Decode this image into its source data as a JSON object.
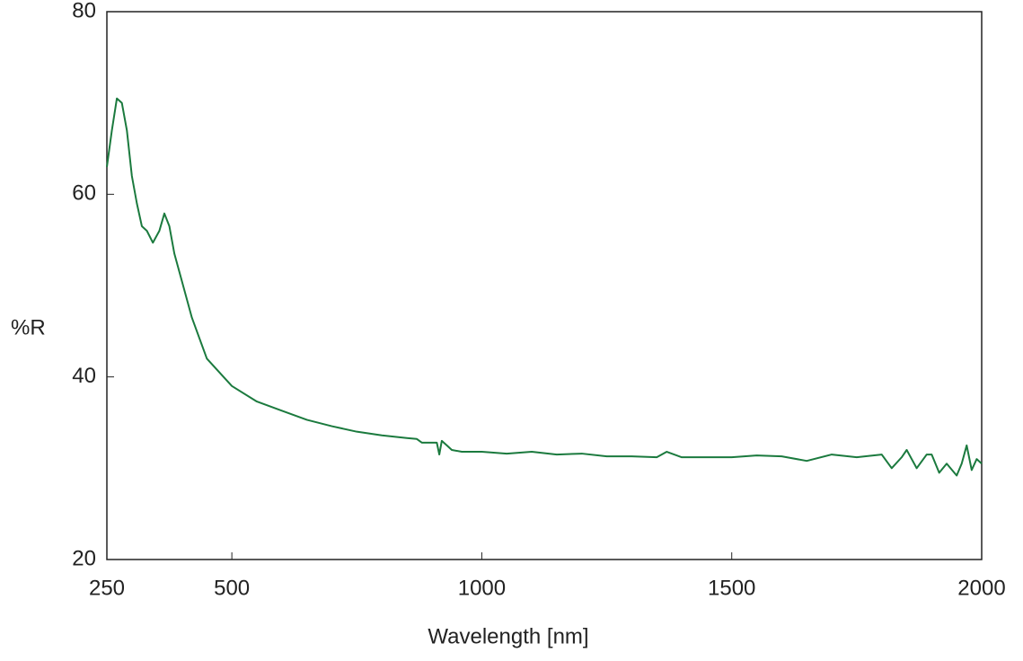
{
  "chart_data": {
    "type": "line",
    "xlabel": "Wavelength [nm]",
    "ylabel": "%R",
    "x": [
      250,
      260,
      270,
      280,
      290,
      300,
      310,
      320,
      330,
      342,
      355,
      365,
      375,
      385,
      400,
      420,
      450,
      500,
      550,
      600,
      650,
      700,
      750,
      800,
      850,
      870,
      880,
      910,
      915,
      920,
      930,
      940,
      960,
      1000,
      1050,
      1100,
      1150,
      1200,
      1250,
      1300,
      1350,
      1370,
      1400,
      1450,
      1500,
      1550,
      1600,
      1650,
      1700,
      1750,
      1800,
      1820,
      1840,
      1850,
      1870,
      1890,
      1900,
      1915,
      1930,
      1950,
      1960,
      1970,
      1980,
      1990,
      2000
    ],
    "series": [
      {
        "name": "%R",
        "color": "#1b7a3e",
        "values": [
          63,
          67,
          70.5,
          70,
          67,
          62,
          59,
          56.5,
          56,
          54.7,
          56,
          57.9,
          56.5,
          53.5,
          50.5,
          46.5,
          42,
          39,
          37.3,
          36.3,
          35.3,
          34.6,
          34,
          33.6,
          33.3,
          33.2,
          32.8,
          32.8,
          31.5,
          33,
          32.5,
          32,
          31.8,
          31.8,
          31.6,
          31.8,
          31.5,
          31.6,
          31.3,
          31.3,
          31.2,
          31.8,
          31.2,
          31.2,
          31.2,
          31.4,
          31.3,
          30.8,
          31.5,
          31.2,
          31.5,
          30,
          31.2,
          32,
          30,
          31.5,
          31.5,
          29.5,
          30.5,
          29.2,
          30.5,
          32.5,
          29.8,
          31,
          30.5
        ]
      }
    ],
    "xlim": [
      250,
      2000
    ],
    "xticks": [
      250,
      500,
      1000,
      1500,
      2000
    ],
    "ylim": [
      20,
      80
    ],
    "yticks": [
      20,
      40,
      60,
      80
    ],
    "grid": false
  }
}
